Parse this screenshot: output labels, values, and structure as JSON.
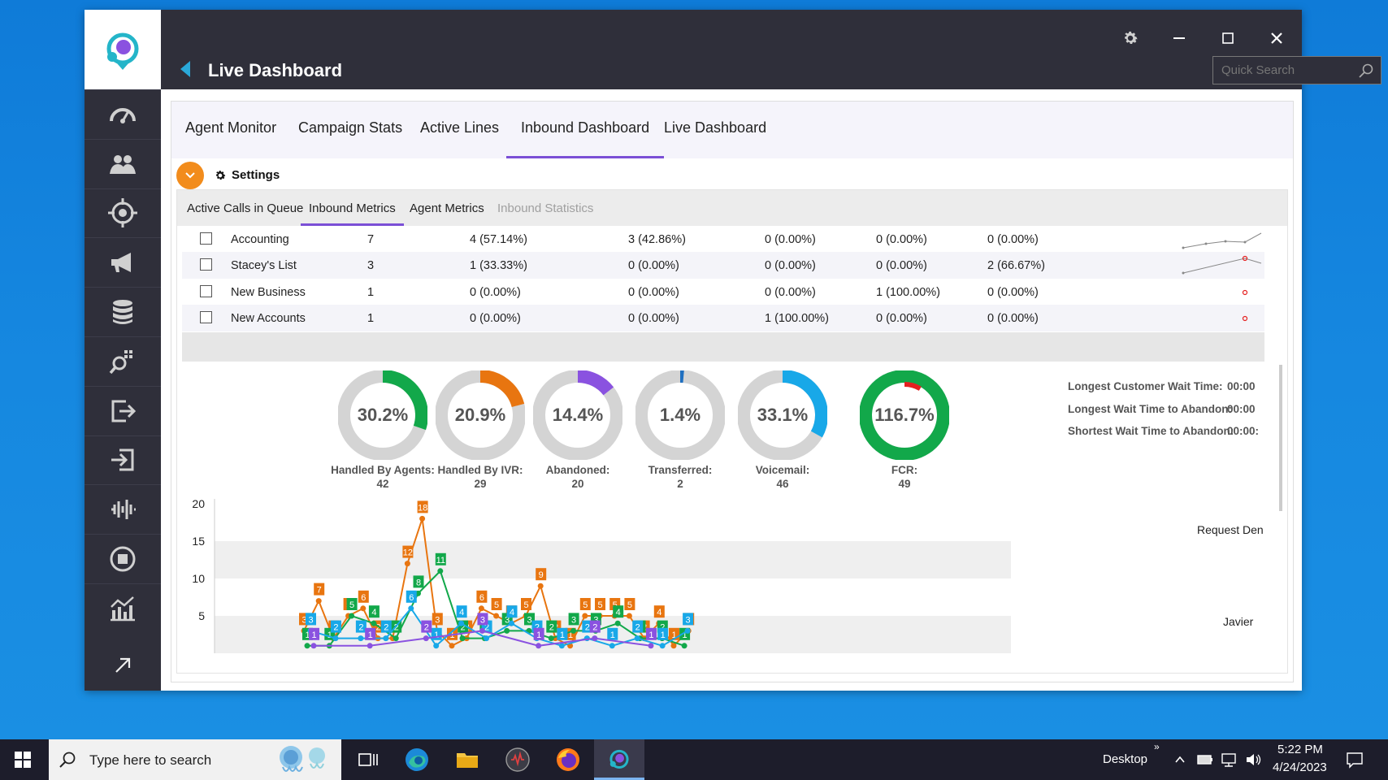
{
  "window": {
    "title": "Live Dashboard",
    "search_placeholder": "Quick Search"
  },
  "sidebar": {
    "items": [
      {
        "icon": "speedometer-icon"
      },
      {
        "icon": "users-icon"
      },
      {
        "icon": "target-icon"
      },
      {
        "icon": "megaphone-icon"
      },
      {
        "icon": "database-icon"
      },
      {
        "icon": "search-analytics-icon"
      },
      {
        "icon": "export-icon"
      },
      {
        "icon": "import-icon"
      },
      {
        "icon": "waveform-icon"
      },
      {
        "icon": "stop-circle-icon"
      },
      {
        "icon": "chart-icon"
      }
    ]
  },
  "tabs": [
    {
      "label": "Agent Monitor"
    },
    {
      "label": "Campaign Stats"
    },
    {
      "label": "Active Lines"
    },
    {
      "label": "Inbound Dashboard",
      "active": true
    },
    {
      "label": "Live Dashboard"
    }
  ],
  "settings": {
    "label": "Settings"
  },
  "subtabs": [
    {
      "label": "Active Calls in Queue"
    },
    {
      "label": "Inbound Metrics",
      "active": true
    },
    {
      "label": "Agent Metrics"
    },
    {
      "label": "Inbound Statistics",
      "disabled": true
    }
  ],
  "queue_rows": [
    {
      "name": "Accounting",
      "total": "7",
      "c1": "4 (57.14%)",
      "c2": "3 (42.86%)",
      "c3": "0 (0.00%)",
      "c4": "0 (0.00%)",
      "c5": "0 (0.00%)"
    },
    {
      "name": "Stacey's List",
      "total": "3",
      "c1": "1 (33.33%)",
      "c2": "0 (0.00%)",
      "c3": "0 (0.00%)",
      "c4": "0 (0.00%)",
      "c5": "2 (66.67%)"
    },
    {
      "name": "New Business",
      "total": "1",
      "c1": "0 (0.00%)",
      "c2": "0 (0.00%)",
      "c3": "0 (0.00%)",
      "c4": "1 (100.00%)",
      "c5": "0 (0.00%)"
    },
    {
      "name": "New Accounts",
      "total": "1",
      "c1": "0 (0.00%)",
      "c2": "0 (0.00%)",
      "c3": "1 (100.00%)",
      "c4": "0 (0.00%)",
      "c5": "0 (0.00%)"
    }
  ],
  "donuts": [
    {
      "value": "30.2%",
      "label": "Handled By Agents:",
      "count": "42",
      "fraction": 0.302,
      "color": "#12a84a"
    },
    {
      "value": "20.9%",
      "label": "Handled By IVR:",
      "count": "29",
      "fraction": 0.209,
      "color": "#e87510"
    },
    {
      "value": "14.4%",
      "label": "Abandoned:",
      "count": "20",
      "fraction": 0.144,
      "color": "#8a52e0"
    },
    {
      "value": "1.4%",
      "label": "Transferred:",
      "count": "2",
      "fraction": 0.014,
      "color": "#1f6fc0"
    },
    {
      "value": "33.1%",
      "label": "Voicemail:",
      "count": "46",
      "fraction": 0.331,
      "color": "#18a8e8"
    },
    {
      "value": "116.7%",
      "label": "FCR:",
      "count": "49",
      "fraction": 1.0,
      "color": "#12a84a",
      "overflow_color": "#e52020",
      "overflow_fraction": 0.085
    }
  ],
  "wait_stats": [
    {
      "label": "Longest Customer Wait Time:",
      "value": "00:00"
    },
    {
      "label": "Longest Wait Time to Abandon:",
      "value": "00:00"
    },
    {
      "label": "Shortest Wait Time to Abandon:",
      "value": "00:00:"
    }
  ],
  "chart_data": {
    "type": "line",
    "yticks": [
      "20",
      "15",
      "10",
      "5"
    ],
    "ylim": [
      0,
      20
    ],
    "series_labels_right": [
      "Request Den",
      "Javier"
    ],
    "series": [
      {
        "color": "#e87510",
        "points": [
          [
            0,
            3
          ],
          [
            1,
            7
          ],
          [
            2,
            2
          ],
          [
            3,
            5
          ],
          [
            4,
            6
          ],
          [
            5,
            2
          ],
          [
            6,
            2
          ],
          [
            7,
            12
          ],
          [
            8,
            18
          ],
          [
            9,
            3
          ],
          [
            10,
            1
          ],
          [
            11,
            2
          ],
          [
            12,
            6
          ],
          [
            13,
            5
          ],
          [
            14,
            4
          ],
          [
            15,
            5
          ],
          [
            16,
            9
          ],
          [
            17,
            2
          ],
          [
            18,
            1
          ],
          [
            19,
            5
          ],
          [
            20,
            5
          ],
          [
            21,
            5
          ],
          [
            22,
            5
          ],
          [
            23,
            2
          ],
          [
            24,
            4
          ],
          [
            25,
            1
          ],
          [
            26,
            3
          ]
        ],
        "labels": [
          "3",
          "7",
          "2",
          "5",
          "6",
          "2",
          "2",
          "12",
          "18",
          "3",
          "1",
          "2",
          "6",
          "5",
          "4",
          "5",
          "9",
          "2",
          "1",
          "5",
          "5",
          "5",
          "5",
          "2",
          "4",
          "1",
          "3"
        ]
      },
      {
        "color": "#12a84a",
        "points": [
          [
            0,
            1
          ],
          [
            1,
            1
          ],
          [
            2,
            5
          ],
          [
            3,
            4
          ],
          [
            4,
            2
          ],
          [
            5,
            8
          ],
          [
            6,
            11
          ],
          [
            7,
            2
          ],
          [
            8,
            2
          ],
          [
            9,
            3
          ],
          [
            10,
            3
          ],
          [
            11,
            2
          ],
          [
            12,
            3
          ],
          [
            13,
            3
          ],
          [
            14,
            4
          ],
          [
            15,
            2
          ],
          [
            16,
            2
          ],
          [
            17,
            1
          ]
        ],
        "labels": [
          "1",
          "1",
          "5",
          "4",
          "2",
          "8",
          "11",
          "2",
          "2",
          "3",
          "3",
          "2",
          "3",
          "3",
          "4",
          "2",
          "2",
          "1"
        ]
      },
      {
        "color": "#18a8e8",
        "points": [
          [
            0,
            3
          ],
          [
            1,
            2
          ],
          [
            2,
            2
          ],
          [
            3,
            2
          ],
          [
            4,
            6
          ],
          [
            5,
            1
          ],
          [
            6,
            4
          ],
          [
            7,
            2
          ],
          [
            8,
            4
          ],
          [
            9,
            2
          ],
          [
            10,
            1
          ],
          [
            11,
            2
          ],
          [
            12,
            1
          ],
          [
            13,
            2
          ],
          [
            14,
            1
          ],
          [
            15,
            3
          ]
        ],
        "labels": [
          "3",
          "2",
          "2",
          "2",
          "6",
          "1",
          "4",
          "2",
          "4",
          "2",
          "1",
          "2",
          "1",
          "2",
          "1",
          "3"
        ]
      },
      {
        "color": "#8a52e0",
        "points": [
          [
            0,
            1
          ],
          [
            1,
            1
          ],
          [
            2,
            2
          ],
          [
            3,
            3
          ],
          [
            4,
            1
          ],
          [
            5,
            2
          ],
          [
            6,
            1
          ]
        ],
        "labels": [
          "1",
          "1",
          "2",
          "3",
          "1",
          "2",
          "1"
        ]
      }
    ]
  },
  "taskbar": {
    "search_text": "Type here to search",
    "desktop_label": "Desktop",
    "time": "5:22 PM",
    "date": "4/24/2023"
  }
}
